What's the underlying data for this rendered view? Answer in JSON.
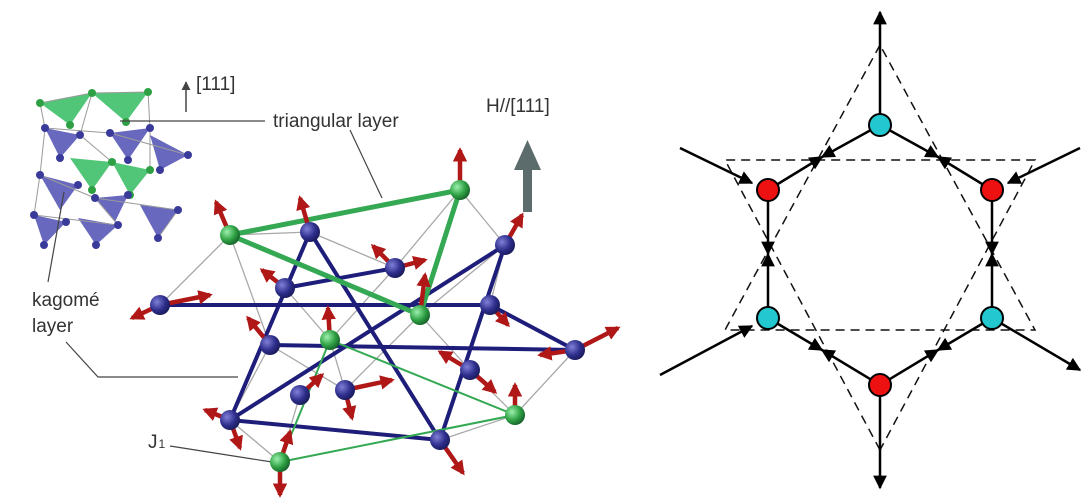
{
  "left_panel": {
    "labels": {
      "axis_111": "[111]",
      "triangular_layer": "triangular layer",
      "field_direction": "H//[111]",
      "kagome_line1": "kagomé",
      "kagome_line2": "layer",
      "coupling_symbol": "J",
      "coupling_index": "1"
    }
  },
  "right_panel": {
    "site_types": [
      "red",
      "cyan"
    ]
  },
  "colors": {
    "kagome_site": "#2e2e8c",
    "triangular_site": "#2ea043",
    "spin_arrow": "#b01818",
    "kagome_bond": "#1e1e7a",
    "triangular_bond": "#34a853",
    "inset_blue_face": "#5858b8",
    "inset_green_face": "#3fc06a",
    "field_arrow": "#5c6b6b",
    "red_site": "#ee1111",
    "cyan_site": "#22c7cf"
  }
}
